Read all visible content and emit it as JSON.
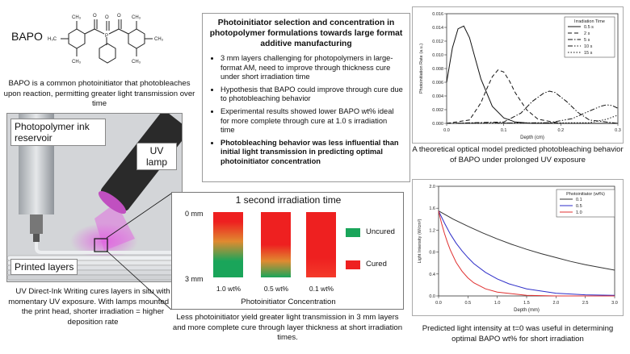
{
  "bapo": {
    "label": "BAPO",
    "description": "BAPO is a common photoinitiator that photobleaches upon reaction, permitting greater light transmission over time"
  },
  "summary": {
    "title": "Photoinitiator selection and concentration in photopolymer formulations towards large format additive manufacturing",
    "bullets": [
      "3 mm layers challenging for photopolymers in large-format AM, need to improve through thickness cure under short irradiation time",
      "Hypothesis that BAPO could improve through cure due to photobleaching behavior",
      "Experimental results showed lower BAPO wt% ideal for more complete through cure at 1.0 s irradiation time",
      "Photobleaching behavior was less influential than initial light transmission in predicting optimal photoinitiator concentration"
    ]
  },
  "scene": {
    "reservoir_label": "Photopolymer ink reservoir",
    "uv_lamp_label": "UV lamp",
    "printed_layers_label": "Printed layers",
    "caption": "UV Direct-Ink Writing cures layers in situ with momentary UV exposure. With lamps mounted to the print head, shorter irradiation = higher deposition rate"
  },
  "irradiation_panel": {
    "title": "1 second irradiation time",
    "depth_top": "0 mm",
    "depth_bottom": "3 mm",
    "bars": [
      {
        "label": "1.0 wt%",
        "cured_fraction": 0.4
      },
      {
        "label": "0.5 wt%",
        "cured_fraction": 0.75
      },
      {
        "label": "0.1 wt%",
        "cured_fraction": 1.0
      }
    ],
    "legend": [
      {
        "label": "Uncured",
        "color": "#1aa55a"
      },
      {
        "label": "Cured",
        "color": "#ee2020"
      }
    ],
    "xlabel": "Photoinitiator Concentration",
    "caption": "Less photoinitiator yield greater light transmission in 3 mm layers and more complete cure through layer thickness at short irradiation times."
  },
  "chart_data": [
    {
      "type": "line",
      "xlabel": "Depth (cm)",
      "ylabel": "Photoinitiation Rate (a.u.)",
      "xlim": [
        0,
        0.3
      ],
      "ylim": [
        0,
        0.016
      ],
      "xticks": [
        "0.0",
        "0.1",
        "0.2",
        "0.3"
      ],
      "yticks": [
        "0.000",
        "0.002",
        "0.004",
        "0.006",
        "0.008",
        "0.010",
        "0.012",
        "0.014",
        "0.016"
      ],
      "legend_title": "Irradiation Time",
      "legend_position": "top-right",
      "series": [
        {
          "name": "0.5 s",
          "dash": "solid",
          "x": [
            0,
            0.01,
            0.02,
            0.03,
            0.04,
            0.05,
            0.06,
            0.08,
            0.1,
            0.12,
            0.15,
            0.2,
            0.3
          ],
          "y": [
            0.006,
            0.011,
            0.0138,
            0.0142,
            0.0125,
            0.0095,
            0.0065,
            0.0025,
            0.0008,
            0.0002,
            0,
            0,
            0
          ]
        },
        {
          "name": "2 s",
          "dash": "dashed",
          "x": [
            0,
            0.04,
            0.06,
            0.07,
            0.08,
            0.09,
            0.1,
            0.11,
            0.12,
            0.14,
            0.16,
            0.2,
            0.3
          ],
          "y": [
            0,
            0.0005,
            0.003,
            0.005,
            0.0068,
            0.0078,
            0.0075,
            0.0062,
            0.0045,
            0.002,
            0.0006,
            0,
            0
          ]
        },
        {
          "name": "5 s",
          "dash": "dash-dot",
          "x": [
            0,
            0.1,
            0.13,
            0.15,
            0.17,
            0.18,
            0.19,
            0.21,
            0.23,
            0.25,
            0.3
          ],
          "y": [
            0,
            0.0002,
            0.0015,
            0.0032,
            0.0044,
            0.0047,
            0.0045,
            0.0032,
            0.0016,
            0.0005,
            0
          ]
        },
        {
          "name": "10 s",
          "dash": "dash-dot-dot",
          "x": [
            0,
            0.18,
            0.22,
            0.25,
            0.27,
            0.28,
            0.29,
            0.3
          ],
          "y": [
            0,
            0.0001,
            0.0007,
            0.0018,
            0.0025,
            0.0027,
            0.0026,
            0.0022
          ]
        },
        {
          "name": "15 s",
          "dash": "dotted",
          "x": [
            0,
            0.25,
            0.28,
            0.3
          ],
          "y": [
            0,
            0.0001,
            0.0006,
            0.0012
          ]
        }
      ],
      "caption": "A theoretical optical model predicted photobleaching behavior of BAPO under prolonged UV exposure"
    },
    {
      "type": "line",
      "xlabel": "Depth (mm)",
      "ylabel": "Light Intensity (W/cm²)",
      "xlim": [
        0,
        3.0
      ],
      "ylim": [
        0,
        2.0
      ],
      "xticks": [
        "0.0",
        "0.5",
        "1.0",
        "1.5",
        "2.0",
        "2.5",
        "3.0"
      ],
      "yticks": [
        "0.0",
        "0.4",
        "0.8",
        "1.2",
        "1.6",
        "2.0"
      ],
      "legend_title": "Photoinitiator (wt%)",
      "legend_position": "top-right",
      "series": [
        {
          "name": "0.1",
          "color": "#333333",
          "x": [
            0,
            0.25,
            0.5,
            0.75,
            1.0,
            1.25,
            1.5,
            1.75,
            2.0,
            2.25,
            2.5,
            2.75,
            3.0
          ],
          "y": [
            1.55,
            1.4,
            1.27,
            1.15,
            1.04,
            0.94,
            0.85,
            0.77,
            0.7,
            0.63,
            0.57,
            0.52,
            0.47
          ]
        },
        {
          "name": "0.5",
          "color": "#2e2ec8",
          "x": [
            0,
            0.1,
            0.2,
            0.3,
            0.4,
            0.5,
            0.6,
            0.8,
            1.0,
            1.2,
            1.5,
            2.0,
            2.5,
            3.0
          ],
          "y": [
            1.55,
            1.33,
            1.13,
            0.96,
            0.82,
            0.7,
            0.59,
            0.43,
            0.31,
            0.22,
            0.13,
            0.05,
            0.02,
            0.01
          ]
        },
        {
          "name": "1.0",
          "color": "#e03030",
          "x": [
            0,
            0.05,
            0.1,
            0.15,
            0.2,
            0.3,
            0.4,
            0.5,
            0.6,
            0.8,
            1.0,
            1.5,
            2.0,
            3.0
          ],
          "y": [
            1.55,
            1.33,
            1.14,
            0.98,
            0.84,
            0.61,
            0.45,
            0.33,
            0.24,
            0.13,
            0.07,
            0.01,
            0,
            0
          ]
        }
      ],
      "caption": "Predicted light intensity at t=0 was useful in determining optimal BAPO wt% for short irradiation"
    }
  ]
}
